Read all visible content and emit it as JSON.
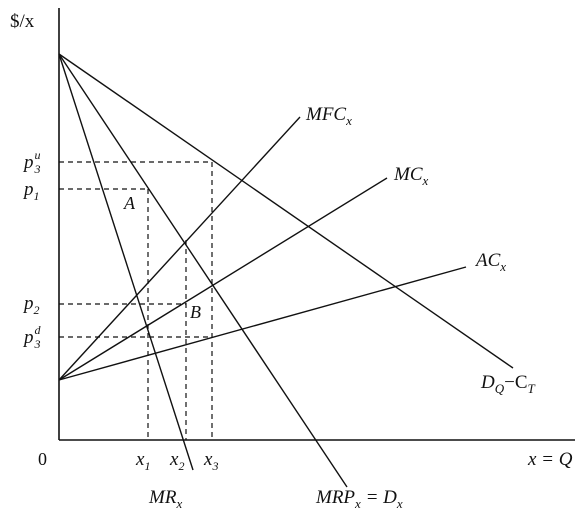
{
  "axes": {
    "y_label": "$/x",
    "x_label": "x = Q",
    "origin": "0"
  },
  "curves": {
    "mfc": {
      "name": "MFC",
      "sub": "x"
    },
    "mc": {
      "name": "MC",
      "sub": "x"
    },
    "ac": {
      "name": "AC",
      "sub": "x"
    },
    "dq": {
      "name": "D",
      "sub": "Q",
      "tail": "−C",
      "tail_sub": "T"
    },
    "mr": {
      "name": "MR",
      "sub": "x"
    },
    "mrp": {
      "name": "MRP",
      "sub": "x",
      "tail": " = D",
      "tail_sub": "x"
    }
  },
  "y_ticks": {
    "p3u": {
      "base": "p",
      "sub": "3",
      "sup": "u"
    },
    "p1": {
      "base": "p",
      "sub": "1"
    },
    "p2": {
      "base": "p",
      "sub": "2"
    },
    "p3d": {
      "base": "p",
      "sub": "3",
      "sup": "d"
    }
  },
  "x_ticks": {
    "x1": {
      "base": "x",
      "sub": "1"
    },
    "x2": {
      "base": "x",
      "sub": "2"
    },
    "x3": {
      "base": "x",
      "sub": "3"
    }
  },
  "points": {
    "a": "A",
    "b": "B"
  }
}
